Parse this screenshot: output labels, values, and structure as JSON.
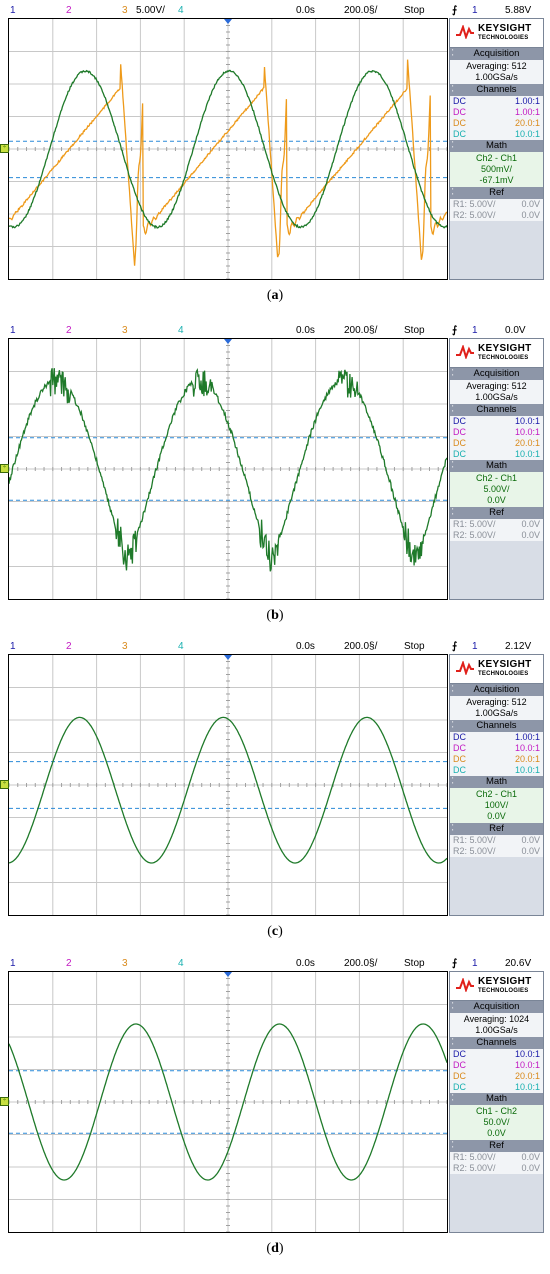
{
  "panels": [
    {
      "caption_letter": "a",
      "top": 4,
      "height": 286,
      "ch_labels": [
        "1",
        "2",
        "3",
        "4"
      ],
      "ch3_scale": "5.00V/",
      "time_offset": "0.0s",
      "time_scale": "200.0§/",
      "run_state": "Stop",
      "trig_symbol": "⨍",
      "trig_ch": "1",
      "trig_level": "5.88V",
      "acq_title": "Acquisition",
      "acq_mode": "Averaging: 512",
      "acq_rate": "1.00GSa/s",
      "channels_title": "Channels",
      "channels": [
        {
          "coupling": "DC",
          "probe": "1.00:1"
        },
        {
          "coupling": "DC",
          "probe": "1.00:1"
        },
        {
          "coupling": "DC",
          "probe": "20.0:1"
        },
        {
          "coupling": "DC",
          "probe": "10.0:1"
        }
      ],
      "math_title": "Math",
      "math_expr": "Ch2 - Ch1",
      "math_scale": "500mV/",
      "math_offset": "-67.1mV",
      "ref_title": "Ref",
      "refs": [
        {
          "name": "R1:",
          "scale": "5.00V/",
          "offset": "0.0V"
        },
        {
          "name": "R2:",
          "scale": "5.00V/",
          "offset": "0.0V"
        }
      ],
      "cursors_y": [
        0.47,
        0.61
      ],
      "traces": [
        "orange",
        "green"
      ]
    },
    {
      "caption_letter": "b",
      "top": 324,
      "height": 286,
      "ch_labels": [
        "1",
        "2",
        "3",
        "4"
      ],
      "ch3_scale": "",
      "time_offset": "0.0s",
      "time_scale": "200.0§/",
      "run_state": "Stop",
      "trig_symbol": "⨍",
      "trig_ch": "1",
      "trig_level": "0.0V",
      "acq_title": "Acquisition",
      "acq_mode": "Averaging: 512",
      "acq_rate": "1.00GSa/s",
      "channels_title": "Channels",
      "channels": [
        {
          "coupling": "DC",
          "probe": "10.0:1"
        },
        {
          "coupling": "DC",
          "probe": "10.0:1"
        },
        {
          "coupling": "DC",
          "probe": "20.0:1"
        },
        {
          "coupling": "DC",
          "probe": "10.0:1"
        }
      ],
      "math_title": "Math",
      "math_expr": "Ch2 - Ch1",
      "math_scale": "5.00V/",
      "math_offset": "0.0V",
      "ref_title": "Ref",
      "refs": [
        {
          "name": "R1:",
          "scale": "5.00V/",
          "offset": "0.0V"
        },
        {
          "name": "R2:",
          "scale": "5.00V/",
          "offset": "0.0V"
        }
      ],
      "cursors_y": [
        0.38,
        0.62
      ],
      "traces": [
        "green_noisy"
      ]
    },
    {
      "caption_letter": "c",
      "top": 640,
      "height": 286,
      "ch_labels": [
        "1",
        "2",
        "3",
        "4"
      ],
      "ch3_scale": "",
      "time_offset": "0.0s",
      "time_scale": "200.0§/",
      "run_state": "Stop",
      "trig_symbol": "⨍",
      "trig_ch": "1",
      "trig_level": "2.12V",
      "acq_title": "Acquisition",
      "acq_mode": "Averaging: 512",
      "acq_rate": "1.00GSa/s",
      "channels_title": "Channels",
      "channels": [
        {
          "coupling": "DC",
          "probe": "1.00:1"
        },
        {
          "coupling": "DC",
          "probe": "10.0:1"
        },
        {
          "coupling": "DC",
          "probe": "20.0:1"
        },
        {
          "coupling": "DC",
          "probe": "10.0:1"
        }
      ],
      "math_title": "Math",
      "math_expr": "Ch2 - Ch1",
      "math_scale": "100V/",
      "math_offset": "0.0V",
      "ref_title": "Ref",
      "refs": [
        {
          "name": "R1:",
          "scale": "5.00V/",
          "offset": "0.0V"
        },
        {
          "name": "R2:",
          "scale": "5.00V/",
          "offset": "0.0V"
        }
      ],
      "cursors_y": [
        0.41,
        0.59
      ],
      "traces": [
        "green_sine"
      ]
    },
    {
      "caption_letter": "d",
      "top": 957,
      "height": 286,
      "ch_labels": [
        "1",
        "2",
        "3",
        "4"
      ],
      "ch3_scale": "",
      "time_offset": "0.0s",
      "time_scale": "200.0§/",
      "run_state": "Stop",
      "trig_symbol": "⨍",
      "trig_ch": "1",
      "trig_level": "20.6V",
      "acq_title": "Acquisition",
      "acq_mode": "Averaging: 1024",
      "acq_rate": "1.00GSa/s",
      "channels_title": "Channels",
      "channels": [
        {
          "coupling": "DC",
          "probe": "10.0:1"
        },
        {
          "coupling": "DC",
          "probe": "10.0:1"
        },
        {
          "coupling": "DC",
          "probe": "20.0:1"
        },
        {
          "coupling": "DC",
          "probe": "10.0:1"
        }
      ],
      "math_title": "Math",
      "math_expr": "Ch1 - Ch2",
      "math_scale": "50.0V/",
      "math_offset": "0.0V",
      "ref_title": "Ref",
      "refs": [
        {
          "name": "R1:",
          "scale": "5.00V/",
          "offset": "0.0V"
        },
        {
          "name": "R2:",
          "scale": "5.00V/",
          "offset": "0.0V"
        }
      ],
      "cursors_y": [
        0.38,
        0.62
      ],
      "traces": [
        "green_sine_shift"
      ]
    }
  ],
  "brand": {
    "name": "KEYSIGHT",
    "sub": "TECHNOLOGIES"
  },
  "colors": {
    "ch1": "#1a1aa8",
    "ch2": "#c21ac2",
    "ch3": "#d98a1c",
    "ch4": "#1ab0b0",
    "trace_green": "#1f7a2a",
    "trace_orange": "#ee9a1a",
    "cursor": "#2a8ad8",
    "grid": "#c8c8c8"
  },
  "chart_data": [
    {
      "type": "line",
      "title": "",
      "xlabel": "",
      "ylabel": "",
      "series": [
        {
          "name": "",
          "shape": "sawtooth-ringing",
          "periods": 3
        },
        {
          "name": "",
          "shape": "sine-ish",
          "periods": 3
        }
      ]
    },
    {
      "type": "line",
      "title": "",
      "xlabel": "",
      "ylabel": "",
      "series": [
        {
          "name": "",
          "shape": "noisy-triangular",
          "periods": 3
        }
      ]
    },
    {
      "type": "line",
      "title": "",
      "xlabel": "",
      "ylabel": "",
      "series": [
        {
          "name": "",
          "shape": "sine",
          "periods": 3
        }
      ]
    },
    {
      "type": "line",
      "title": "",
      "xlabel": "",
      "ylabel": "",
      "series": [
        {
          "name": "",
          "shape": "sine",
          "periods": 3
        }
      ]
    }
  ]
}
